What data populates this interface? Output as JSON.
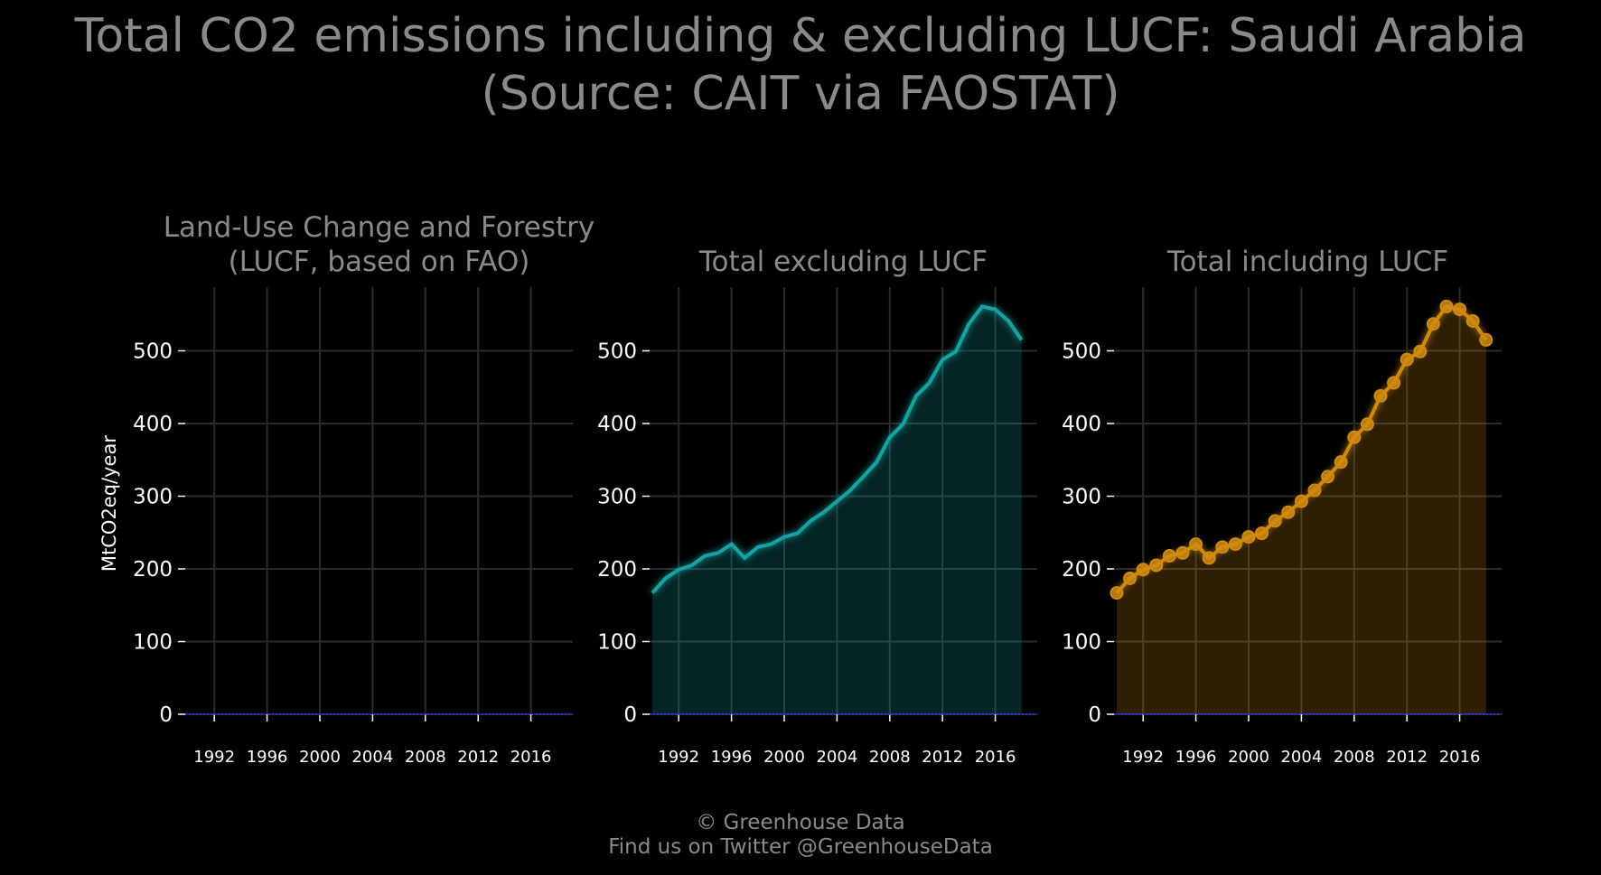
{
  "title_line1": "Total CO2 emissions including & excluding LUCF: Saudi Arabia",
  "title_line2": "(Source: CAIT via FAOSTAT)",
  "credit_line1": "© Greenhouse Data",
  "credit_line2": "Find us on Twitter @GreenhouseData",
  "colors": {
    "lucf": "#1b6b3a",
    "excl": "#17a2a2",
    "incl": "#d08a10",
    "zero_line": "#2a2aff",
    "grid": "#2b2b2b"
  },
  "chart_data": [
    {
      "type": "area",
      "title": [
        "Land-Use Change and Forestry",
        "(LUCF, based on FAO)"
      ],
      "ylabel": "MtCO2eq/year",
      "ylim": [
        0,
        580
      ],
      "yticks": [
        "0",
        "100",
        "200",
        "300",
        "400",
        "500"
      ],
      "xticks": [
        "1992",
        "1996",
        "2000",
        "2004",
        "2008",
        "2012",
        "2016"
      ],
      "grid": true,
      "series": [
        {
          "x": [
            1990,
            1991,
            1992,
            1993,
            1994,
            1995,
            1996,
            1997,
            1998,
            1999,
            2000,
            2001,
            2002,
            2003,
            2004,
            2005,
            2006,
            2007,
            2008,
            2009,
            2010,
            2011,
            2012,
            2013,
            2014,
            2015,
            2016,
            2017,
            2018
          ],
          "values": [
            0,
            0,
            0,
            0,
            0,
            0,
            0,
            0,
            0,
            0,
            0,
            0,
            0,
            0,
            0,
            0,
            0,
            0,
            0,
            0,
            0,
            0,
            0,
            0,
            0,
            0,
            0,
            0,
            0
          ]
        }
      ]
    },
    {
      "type": "area",
      "title": [
        "Total excluding LUCF"
      ],
      "ylim": [
        0,
        580
      ],
      "yticks": [
        "0",
        "100",
        "200",
        "300",
        "400",
        "500"
      ],
      "xticks": [
        "1992",
        "1996",
        "2000",
        "2004",
        "2008",
        "2012",
        "2016"
      ],
      "grid": true,
      "series": [
        {
          "x": [
            1990,
            1991,
            1992,
            1993,
            1994,
            1995,
            1996,
            1997,
            1998,
            1999,
            2000,
            2001,
            2002,
            2003,
            2004,
            2005,
            2006,
            2007,
            2008,
            2009,
            2010,
            2011,
            2012,
            2013,
            2014,
            2015,
            2016,
            2017,
            2018
          ],
          "values": [
            167,
            187,
            199,
            205,
            218,
            222,
            234,
            215,
            230,
            234,
            244,
            249,
            266,
            278,
            293,
            308,
            327,
            347,
            381,
            399,
            438,
            456,
            488,
            499,
            537,
            561,
            557,
            541,
            515
          ]
        }
      ]
    },
    {
      "type": "area",
      "title": [
        "Total including LUCF"
      ],
      "ylim": [
        0,
        580
      ],
      "yticks": [
        "0",
        "100",
        "200",
        "300",
        "400",
        "500"
      ],
      "xticks": [
        "1992",
        "1996",
        "2000",
        "2004",
        "2008",
        "2012",
        "2016"
      ],
      "grid": true,
      "series": [
        {
          "x": [
            1990,
            1991,
            1992,
            1993,
            1994,
            1995,
            1996,
            1997,
            1998,
            1999,
            2000,
            2001,
            2002,
            2003,
            2004,
            2005,
            2006,
            2007,
            2008,
            2009,
            2010,
            2011,
            2012,
            2013,
            2014,
            2015,
            2016,
            2017,
            2018
          ],
          "values": [
            167,
            187,
            199,
            205,
            218,
            222,
            234,
            215,
            230,
            234,
            244,
            249,
            266,
            278,
            293,
            308,
            327,
            347,
            381,
            399,
            438,
            456,
            488,
            499,
            537,
            561,
            557,
            541,
            515
          ]
        }
      ]
    }
  ]
}
